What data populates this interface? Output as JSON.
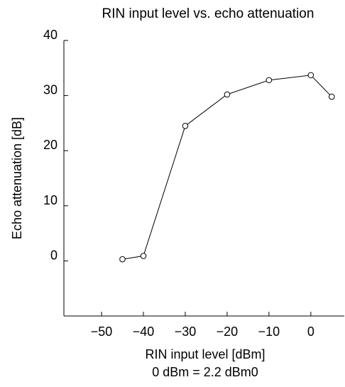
{
  "chart_data": {
    "type": "line",
    "title": "RIN input level vs. echo attenuation",
    "xlabel": "RIN input level [dBm]",
    "xlabel_note": "0 dBm = 2.2 dBm0",
    "ylabel": "Echo attenuation [dB]",
    "x_ticks": [
      -50,
      -40,
      -30,
      -20,
      -10,
      0
    ],
    "y_ticks": [
      0,
      10,
      20,
      30,
      40
    ],
    "xlim": [
      -59,
      8
    ],
    "ylim": [
      -10,
      40
    ],
    "grid": false,
    "markers": "open-circle",
    "series": [
      {
        "x": [
          -45,
          -40,
          -30,
          -20,
          -10,
          0,
          5
        ],
        "y": [
          0.3,
          0.9,
          24.5,
          30.2,
          32.8,
          33.7,
          29.8
        ]
      }
    ]
  }
}
